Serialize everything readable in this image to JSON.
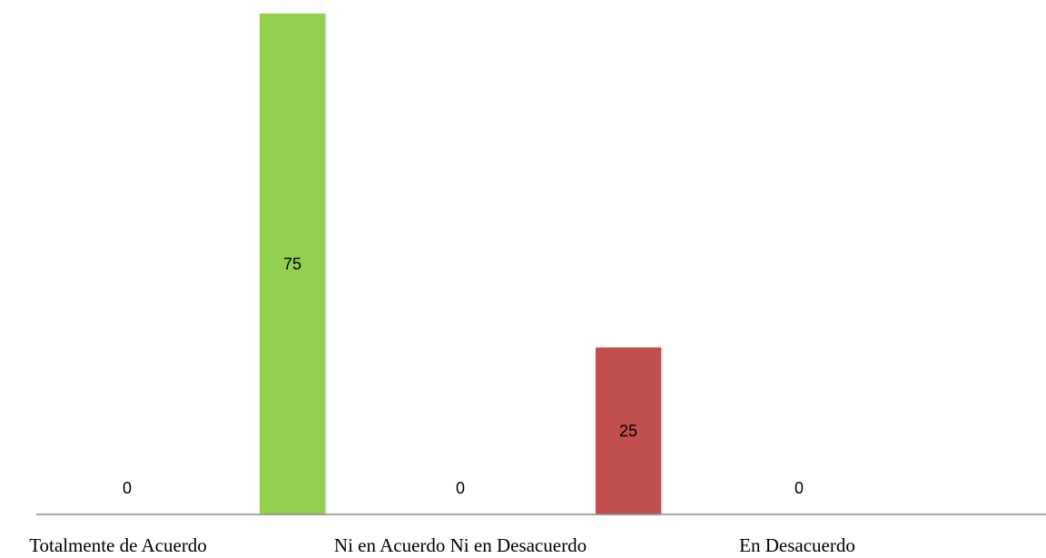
{
  "chart_data": {
    "type": "bar",
    "categories": [
      "Totalmente de Acuerdo",
      "",
      "Ni en Acuerdo Ni en Desacuerdo",
      "",
      "En Desacuerdo"
    ],
    "values": [
      0,
      75,
      0,
      25,
      0
    ],
    "data_labels": [
      "0",
      "75",
      "0",
      "25",
      "0"
    ],
    "colors": [
      "#92D050",
      "#92D050",
      "#C0504D",
      "#C0504D",
      "#92D050"
    ],
    "ylim": [
      0,
      75
    ],
    "grid": false,
    "legend": "none",
    "title": "",
    "xlabel": "",
    "ylabel": ""
  }
}
